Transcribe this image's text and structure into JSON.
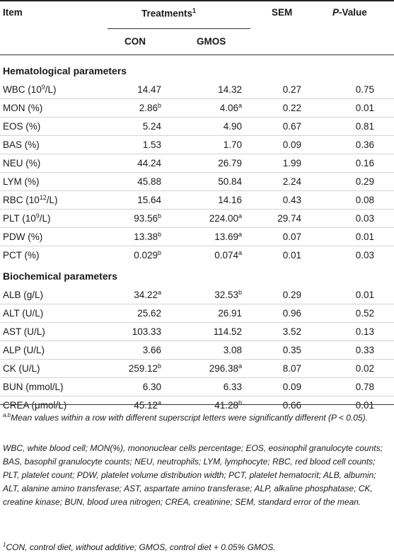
{
  "header": {
    "item": "Item",
    "treatments": "Treatments",
    "treatments_sup": "1",
    "sem": "SEM",
    "p_italic": "P",
    "p_rest": "-Value",
    "con": "CON",
    "gmos": "GMOS"
  },
  "sections": [
    {
      "title": "Hematological parameters",
      "rows": [
        {
          "item_pre": "WBC (10",
          "item_sup": "9",
          "item_post": "/L)",
          "con": "14.47",
          "con_sup": "",
          "gmos": "14.32",
          "gmos_sup": "",
          "sem": "0.27",
          "p": "0.75"
        },
        {
          "item_pre": "MON (%)",
          "item_sup": "",
          "item_post": "",
          "con": "2.86",
          "con_sup": "b",
          "gmos": "4.06",
          "gmos_sup": "a",
          "sem": "0.22",
          "p": "0.01"
        },
        {
          "item_pre": "EOS (%)",
          "item_sup": "",
          "item_post": "",
          "con": "5.24",
          "con_sup": "",
          "gmos": "4.90",
          "gmos_sup": "",
          "sem": "0.67",
          "p": "0.81"
        },
        {
          "item_pre": "BAS (%)",
          "item_sup": "",
          "item_post": "",
          "con": "1.53",
          "con_sup": "",
          "gmos": "1.70",
          "gmos_sup": "",
          "sem": "0.09",
          "p": "0.36"
        },
        {
          "item_pre": "NEU (%)",
          "item_sup": "",
          "item_post": "",
          "con": "44.24",
          "con_sup": "",
          "gmos": "26.79",
          "gmos_sup": "",
          "sem": "1.99",
          "p": "0.16"
        },
        {
          "item_pre": "LYM (%)",
          "item_sup": "",
          "item_post": "",
          "con": "45.88",
          "con_sup": "",
          "gmos": "50.84",
          "gmos_sup": "",
          "sem": "2.24",
          "p": "0.29"
        },
        {
          "item_pre": "RBC (10",
          "item_sup": "12",
          "item_post": "/L)",
          "con": "15.64",
          "con_sup": "",
          "gmos": "14.16",
          "gmos_sup": "",
          "sem": "0.43",
          "p": "0.08"
        },
        {
          "item_pre": "PLT (10",
          "item_sup": "9",
          "item_post": "/L)",
          "con": "93.56",
          "con_sup": "b",
          "gmos": "224.00",
          "gmos_sup": "a",
          "sem": "29.74",
          "p": "0.03"
        },
        {
          "item_pre": "PDW (%)",
          "item_sup": "",
          "item_post": "",
          "con": "13.38",
          "con_sup": "b",
          "gmos": "13.69",
          "gmos_sup": "a",
          "sem": "0.07",
          "p": "0.01"
        },
        {
          "item_pre": "PCT (%)",
          "item_sup": "",
          "item_post": "",
          "con": "0.029",
          "con_sup": "b",
          "gmos": "0.074",
          "gmos_sup": "a",
          "sem": "0.01",
          "p": "0.03"
        }
      ]
    },
    {
      "title": "Biochemical parameters",
      "rows": [
        {
          "item_pre": "ALB (g/L)",
          "item_sup": "",
          "item_post": "",
          "con": "34.22",
          "con_sup": "a",
          "gmos": "32.53",
          "gmos_sup": "b",
          "sem": "0.29",
          "p": "0.01"
        },
        {
          "item_pre": "ALT (U/L)",
          "item_sup": "",
          "item_post": "",
          "con": "25.62",
          "con_sup": "",
          "gmos": "26.91",
          "gmos_sup": "",
          "sem": "0.96",
          "p": "0.52"
        },
        {
          "item_pre": "AST (U/L)",
          "item_sup": "",
          "item_post": "",
          "con": "103.33",
          "con_sup": "",
          "gmos": "114.52",
          "gmos_sup": "",
          "sem": "3.52",
          "p": "0.13"
        },
        {
          "item_pre": "ALP (U/L)",
          "item_sup": "",
          "item_post": "",
          "con": "3.66",
          "con_sup": "",
          "gmos": "3.08",
          "gmos_sup": "",
          "sem": "0.35",
          "p": "0.33"
        },
        {
          "item_pre": "CK (U/L)",
          "item_sup": "",
          "item_post": "",
          "con": "259.12",
          "con_sup": "b",
          "gmos": "296.38",
          "gmos_sup": "a",
          "sem": "8.07",
          "p": "0.02"
        },
        {
          "item_pre": "BUN (mmol/L)",
          "item_sup": "",
          "item_post": "",
          "con": "6.30",
          "con_sup": "",
          "gmos": "6.33",
          "gmos_sup": "",
          "sem": "0.09",
          "p": "0.78"
        },
        {
          "item_pre": "CREA (μmol/L)",
          "item_sup": "",
          "item_post": "",
          "con": "45.12",
          "con_sup": "a",
          "gmos": "41.28",
          "gmos_sup": "b",
          "sem": "0.66",
          "p": "0.01"
        }
      ]
    }
  ],
  "footnotes": {
    "ab_sup": "a,b",
    "ab_text": "Mean values within a row with different superscript letters were significantly different (P < 0.05).",
    "abbrev": "WBC, white blood cell; MON(%), mononuclear cells percentage; EOS, eosinophil granulocyte counts; BAS, basophil granulocyte counts; NEU, neutrophils; LYM, lymphocyte; RBC, red blood cell counts; PLT, platelet count; PDW, platelet volume distribution width; PCT, platelet hematocrit; ALB, albumin; ALT, alanine amino transferase; AST, aspartate amino transferase; ALP, alkaline phosphatase; CK, creatine kinase; BUN, blood urea nitrogen; CREA, creatinine; SEM, standard error of the mean.",
    "one_sup": "1",
    "one_text": "CON, control diet, without additive; GMOS, control diet + 0.05% GMOS."
  }
}
